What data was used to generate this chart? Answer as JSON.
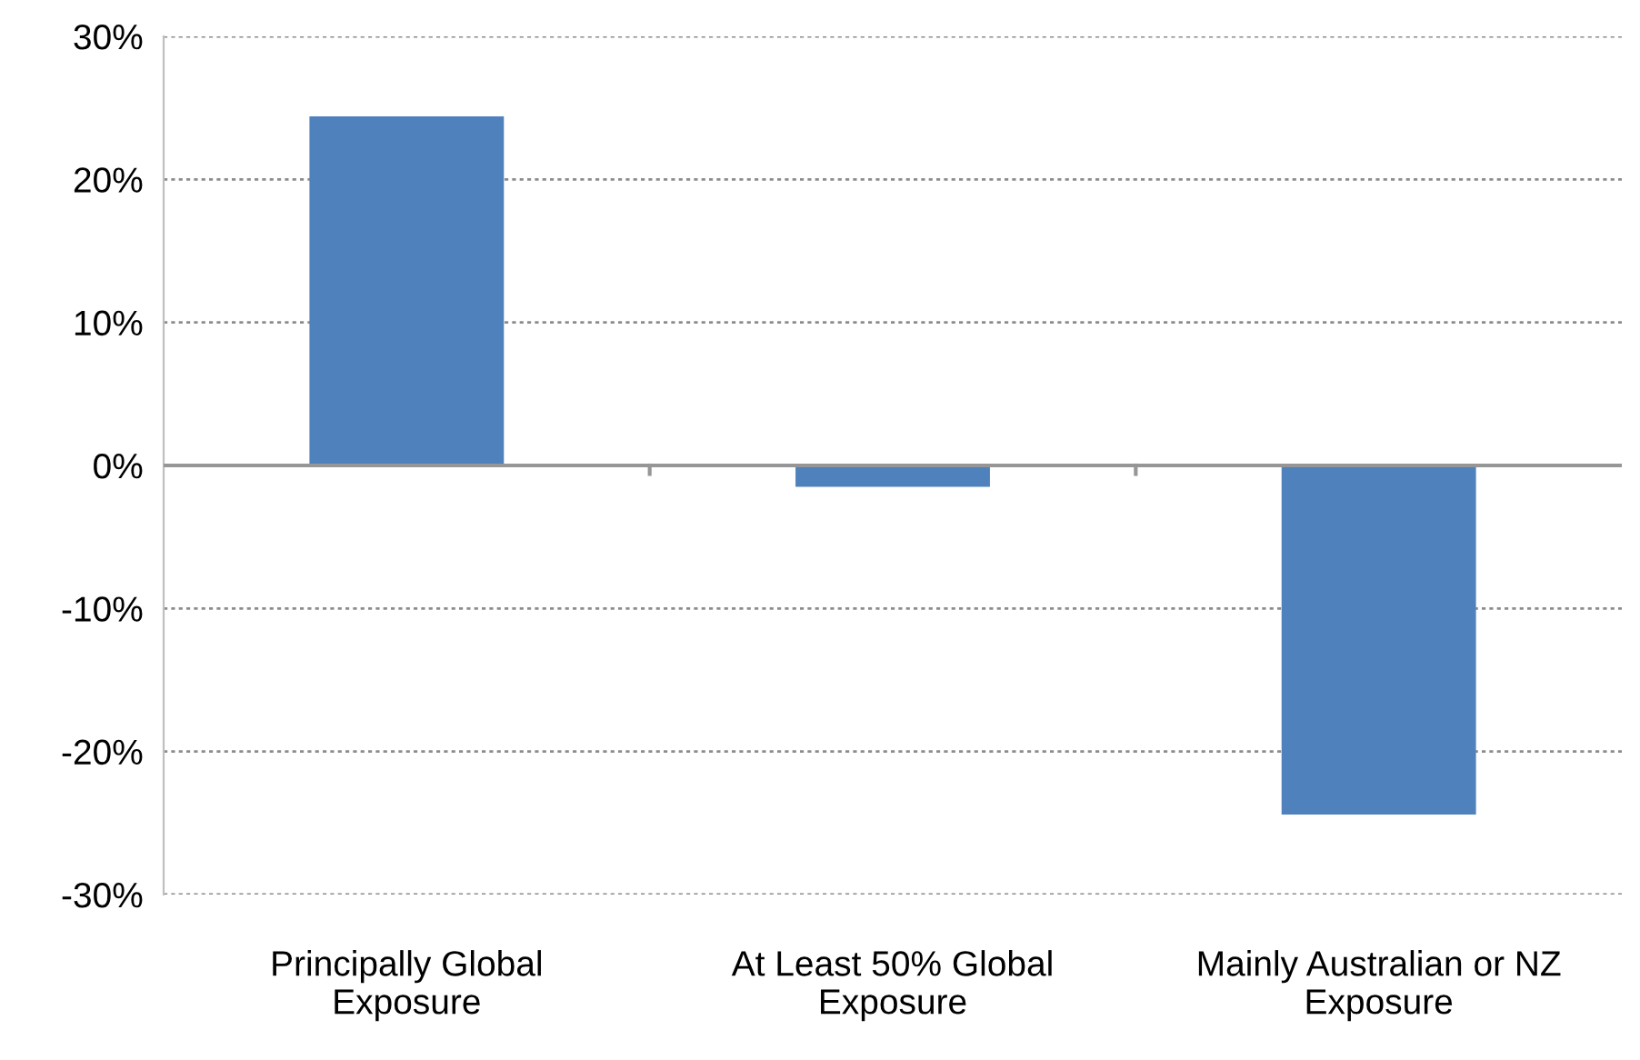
{
  "chart_data": {
    "type": "bar",
    "categories": [
      "Principally Global\nExposure",
      "At Least 50% Global\nExposure",
      "Mainly Australian or NZ\nExposure"
    ],
    "values": [
      24.4,
      -1.5,
      -24.4
    ],
    "color": "#4f81bd",
    "ylim": [
      -30,
      30
    ],
    "yticks": [
      {
        "value": -30,
        "label": "-30%"
      },
      {
        "value": -20,
        "label": "-20%"
      },
      {
        "value": -10,
        "label": "-10%"
      },
      {
        "value": 0,
        "label": "0%"
      },
      {
        "value": 10,
        "label": "10%"
      },
      {
        "value": 20,
        "label": "20%"
      },
      {
        "value": 30,
        "label": "30%"
      }
    ],
    "grid": "y"
  }
}
